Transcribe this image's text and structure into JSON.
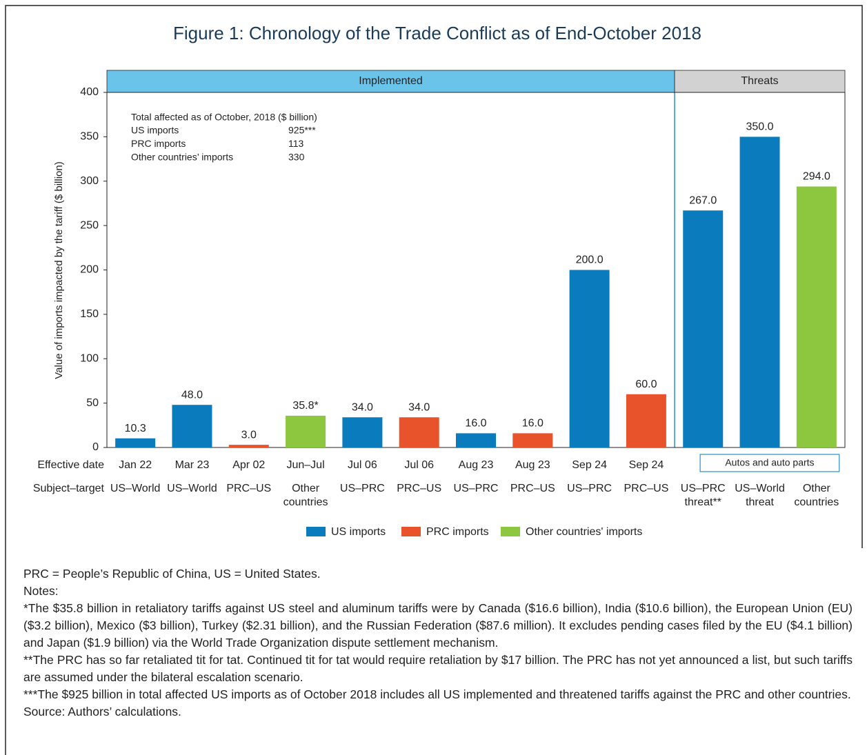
{
  "chart_data": {
    "type": "bar",
    "title": "Figure 1: Chronology of the Trade Conflict as of End-October 2018",
    "y_label": "Value of imports impacted by the tariff ($ billion)",
    "row_labels": [
      "Effective date",
      "Subject–target"
    ],
    "bands": [
      {
        "label": "Implemented",
        "color": "#6ac4ea",
        "count": 10
      },
      {
        "label": "Threats",
        "color": "#d2d2d2",
        "count": 3
      }
    ],
    "categories": [
      "Jan 22",
      "Mar 23",
      "Apr 02",
      "Jun–Jul",
      "Jul 06",
      "Jul 06",
      "Aug 23",
      "Aug 23",
      "Sep 24",
      "Sep 24",
      null,
      null,
      null
    ],
    "subjects": [
      [
        "US–World"
      ],
      [
        "US–World"
      ],
      [
        "PRC–US"
      ],
      [
        "Other",
        "countries"
      ],
      [
        "US–PRC"
      ],
      [
        "PRC–US"
      ],
      [
        "US–PRC"
      ],
      [
        "PRC–US"
      ],
      [
        "US–PRC"
      ],
      [
        "PRC–US"
      ],
      [
        "US–PRC",
        "threat**"
      ],
      [
        "US–World",
        "threat"
      ],
      [
        "Other",
        "countries"
      ]
    ],
    "series": [
      {
        "name": "US imports",
        "color": "#0a7bbd",
        "values": [
          10.3,
          48,
          null,
          null,
          34,
          null,
          16,
          null,
          200,
          null,
          267,
          350,
          null
        ],
        "value_labels": [
          "10.3",
          "48.0",
          null,
          null,
          "34.0",
          null,
          "16.0",
          null,
          "200.0",
          null,
          "267.0",
          "350.0",
          null
        ]
      },
      {
        "name": "PRC imports",
        "color": "#e8532b",
        "values": [
          null,
          null,
          3,
          null,
          null,
          34,
          null,
          16,
          null,
          60,
          null,
          null,
          null
        ],
        "value_labels": [
          null,
          null,
          "3.0",
          null,
          null,
          "34.0",
          null,
          "16.0",
          null,
          "60.0",
          null,
          null,
          null
        ]
      },
      {
        "name": "Other countries' imports",
        "color": "#8dc63f",
        "values": [
          null,
          null,
          null,
          35.8,
          null,
          null,
          null,
          null,
          null,
          null,
          null,
          null,
          294
        ],
        "value_labels": [
          null,
          null,
          null,
          "35.8*",
          null,
          null,
          null,
          null,
          null,
          null,
          null,
          null,
          "294.0"
        ]
      }
    ],
    "ylim": [
      0,
      400
    ],
    "yticks": [
      0,
      50,
      100,
      150,
      200,
      250,
      300,
      350,
      400
    ],
    "annotation_box": "Autos and auto parts",
    "summary": {
      "title": "Total affected as of October, 2018 ($ billion)",
      "rows": [
        [
          "US imports",
          "925***"
        ],
        [
          "PRC imports",
          "113"
        ],
        [
          "Other countries’ imports",
          "330"
        ]
      ]
    }
  },
  "notes": [
    "PRC = People’s Republic of China, US = United States.",
    "Notes:",
    "*The $35.8 billion in retaliatory tariffs against US steel and aluminum tariffs were by Canada ($16.6 billion), India ($10.6 billion), the European Union (EU) ($3.2 billion), Mexico ($3 billion), Turkey ($2.31 billion), and the Russian Federation ($87.6 million).  It excludes pending cases filed by the EU ($4.1 billion) and Japan ($1.9 billion) via the World Trade Organization dispute settlement mechanism.",
    "**The PRC has so far retaliated tit for tat. Continued tit for tat would require retaliation by $17 billion. The PRC has not yet announced a list, but such tariffs are assumed under the bilateral escalation scenario.",
    "***The $925 billion in total affected US imports as of October 2018 includes all US implemented and threatened tariffs against the PRC and other countries.",
    "Source: Authors’ calculations."
  ]
}
